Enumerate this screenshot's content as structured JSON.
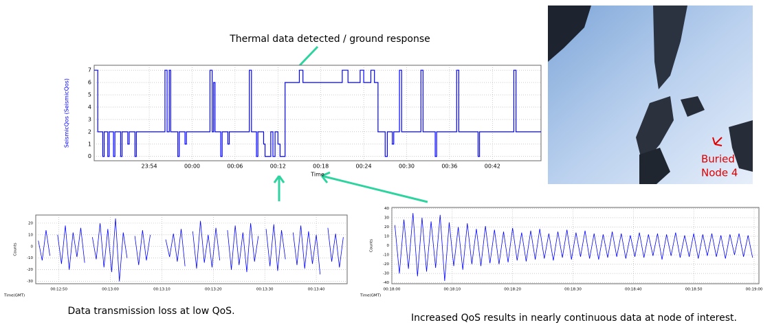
{
  "chart_data": [
    {
      "type": "line",
      "step": true,
      "ylabel": "SeismicQos (SeismicQos)",
      "xlabel": "Time",
      "x": [
        -13.7,
        -13.2,
        -12.5,
        -12.3,
        -11.8,
        -11.6,
        -11,
        -10.8,
        -10,
        -9.8,
        -9,
        -8.8,
        -8,
        -7.8,
        -6,
        -3.8,
        -3.5,
        -3.2,
        -3,
        -2,
        -1.8,
        -1,
        -0.8,
        0,
        2.5,
        2.8,
        3,
        3.2,
        4,
        4.2,
        5,
        5.2,
        6,
        8,
        8.3,
        9,
        9.2,
        10,
        10.2,
        11,
        11.3,
        11.6,
        12,
        12.3,
        13,
        15,
        15.5,
        21,
        21.8,
        23.5,
        24,
        25,
        25.5,
        26,
        27,
        27.3,
        28,
        28.2,
        29,
        29.3,
        32,
        32.3,
        34,
        34.2,
        37,
        37.3,
        40,
        40.2,
        45,
        45.3,
        48.8
      ],
      "series": [
        {
          "color": "#0000ff",
          "values": [
            7,
            2,
            0,
            2,
            0,
            2,
            0,
            2,
            0,
            2,
            1,
            2,
            0,
            2,
            2,
            7,
            2,
            7,
            2,
            0,
            2,
            1,
            2,
            2,
            7,
            2,
            6,
            2,
            0,
            2,
            1,
            2,
            2,
            7,
            2,
            0,
            2,
            1,
            0,
            2,
            0,
            2,
            1,
            0,
            6,
            7,
            6,
            7,
            6,
            7,
            6,
            7,
            6,
            2,
            0,
            2,
            1,
            2,
            7,
            2,
            7,
            2,
            0,
            2,
            7,
            2,
            0,
            2,
            7,
            2,
            2
          ]
        }
      ],
      "xlim": [
        -13.7,
        48.8
      ],
      "ylim": [
        -0.35,
        7.4
      ],
      "xticks": [
        {
          "value": -6,
          "label": "23:54"
        },
        {
          "value": 0,
          "label": "00:00"
        },
        {
          "value": 6,
          "label": "00:06"
        },
        {
          "value": 12,
          "label": "00:12"
        },
        {
          "value": 18,
          "label": "00:18"
        },
        {
          "value": 24,
          "label": "00:24"
        },
        {
          "value": 30,
          "label": "00:30"
        },
        {
          "value": 36,
          "label": "00:36"
        },
        {
          "value": 42,
          "label": "00:42"
        }
      ],
      "yticks": [
        0,
        1,
        2,
        3,
        4,
        5,
        6,
        7
      ],
      "grid": true
    },
    {
      "type": "line",
      "step": false,
      "ylabel": "Counts",
      "xlabel": "Time(GMT)",
      "x": [
        46,
        46.75,
        47.5,
        48.25,
        49,
        49.75,
        50.5,
        51.25,
        52,
        52.75,
        53.5,
        54.25,
        55,
        55.75,
        56.5,
        57.25,
        58,
        58.75,
        59.5,
        60.25,
        61,
        61.75,
        62.5,
        63.25,
        64,
        64.75,
        65.5,
        66.25,
        67,
        67.75,
        68.5,
        69.25,
        70,
        70.75,
        71.5,
        72.25,
        73,
        73.75,
        74.5,
        75.25,
        76,
        76.75,
        77.5,
        78.25,
        79,
        79.75,
        80.5,
        81.25,
        82,
        82.75,
        83.5,
        84.25,
        85,
        85.75,
        86.5,
        87.25,
        88,
        88.75,
        89.5,
        90.25,
        91,
        91.75,
        92.5,
        93.25,
        94,
        94.75,
        95.5,
        96.25,
        97,
        97.75,
        98.5,
        99.25,
        100,
        100.75,
        101.5,
        102.25,
        103,
        103.75,
        104.5,
        105.25
      ],
      "series": [
        {
          "color": "#0000ff",
          "values": [
            5,
            -12,
            14,
            -8,
            null,
            10,
            -15,
            18,
            -20,
            12,
            -9,
            16,
            -14,
            null,
            8,
            -11,
            20,
            -18,
            15,
            -22,
            24,
            -30,
            12,
            -10,
            null,
            9,
            -16,
            14,
            -12,
            10,
            null,
            null,
            null,
            6,
            -9,
            11,
            -13,
            15,
            -17,
            null,
            13,
            -19,
            22,
            -14,
            10,
            -18,
            16,
            -12,
            null,
            14,
            -20,
            18,
            -16,
            12,
            -22,
            20,
            -13,
            9,
            null,
            15,
            -17,
            19,
            -21,
            14,
            -11,
            null,
            12,
            -16,
            18,
            -19,
            13,
            -15,
            10,
            -24,
            null,
            16,
            -13,
            11,
            -18,
            8
          ]
        }
      ],
      "xlim": [
        45.5,
        106
      ],
      "ylim": [
        -32,
        27
      ],
      "xticks": [
        {
          "value": 50,
          "label": "00:12:50"
        },
        {
          "value": 60,
          "label": "00:13:00"
        },
        {
          "value": 70,
          "label": "00:13:10"
        },
        {
          "value": 80,
          "label": "00:13:20"
        },
        {
          "value": 90,
          "label": "00:13:30"
        },
        {
          "value": 100,
          "label": "00:13:40"
        }
      ],
      "yticks": [
        -30,
        -20,
        -10,
        0,
        10,
        20
      ],
      "grid": true
    },
    {
      "type": "line",
      "step": false,
      "ylabel": "Counts",
      "xlabel": "Time(GMT)",
      "x": [
        0.5,
        1.25,
        2,
        2.75,
        3.5,
        4.25,
        5,
        5.75,
        6.5,
        7.25,
        8,
        8.75,
        9.5,
        10.25,
        11,
        11.75,
        12.5,
        13.25,
        14,
        14.75,
        15.5,
        16.25,
        17,
        17.75,
        18.5,
        19.25,
        20,
        20.75,
        21.5,
        22.25,
        23,
        23.75,
        24.5,
        25.25,
        26,
        26.75,
        27.5,
        28.25,
        29,
        29.75,
        30.5,
        31.25,
        32,
        32.75,
        33.5,
        34.25,
        35,
        35.75,
        36.5,
        37.25,
        38,
        38.75,
        39.5,
        40.25,
        41,
        41.75,
        42.5,
        43.25,
        44,
        44.75,
        45.5,
        46.25,
        47,
        47.75,
        48.5,
        49.25,
        50,
        50.75,
        51.5,
        52.25,
        53,
        53.75,
        54.5,
        55.25,
        56,
        56.75,
        57.5,
        58.25,
        59,
        59.75
      ],
      "series": [
        {
          "color": "#0000ff",
          "values": [
            22,
            -30,
            28,
            -25,
            35,
            -33,
            30,
            -28,
            26,
            -24,
            33,
            -38,
            25,
            -22,
            20,
            -26,
            24,
            -20,
            18,
            -22,
            21,
            -19,
            17,
            -20,
            15,
            -18,
            19,
            -16,
            14,
            -17,
            16,
            -15,
            18,
            -14,
            13,
            -16,
            15,
            -13,
            17,
            -15,
            14,
            -12,
            16,
            -14,
            13,
            -15,
            12,
            -13,
            15,
            -12,
            13,
            -14,
            11,
            -12,
            14,
            -13,
            12,
            -11,
            13,
            -15,
            12,
            -11,
            14,
            -13,
            11,
            -12,
            13,
            -14,
            12,
            -11,
            13,
            -12,
            11,
            -14,
            12,
            -10,
            13,
            -12,
            11,
            -13
          ]
        }
      ],
      "xlim": [
        0,
        60.8
      ],
      "ylim": [
        -41,
        41
      ],
      "xticks": [
        {
          "value": 0,
          "label": "00:18:00"
        },
        {
          "value": 10,
          "label": "00:18:10"
        },
        {
          "value": 20,
          "label": "00:18:20"
        },
        {
          "value": 30,
          "label": "00:18:30"
        },
        {
          "value": 40,
          "label": "00:18:40"
        },
        {
          "value": 50,
          "label": "00:18:50"
        },
        {
          "value": 60,
          "label": "00:19:00"
        }
      ],
      "yticks": [
        -40,
        -30,
        -20,
        -10,
        0,
        10,
        20,
        30,
        40
      ],
      "grid": true
    }
  ],
  "annotations": {
    "top": "Thermal data detected / ground response",
    "left": "Data transmission loss at low QoS.",
    "right": "Increased QoS results in nearly continuous data at node of interest."
  },
  "photo": {
    "label": [
      "Buried",
      "Node 4"
    ]
  }
}
